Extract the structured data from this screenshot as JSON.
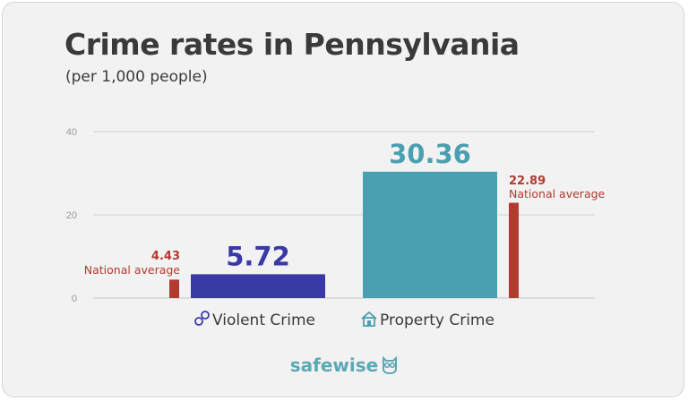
{
  "chart_data": {
    "type": "bar",
    "title": "Crime rates in Pennsylvania",
    "subtitle": "(per 1,000 people)",
    "ylim": [
      0,
      40
    ],
    "yticks": [
      0,
      20,
      40
    ],
    "grid": true,
    "categories": [
      "Violent Crime",
      "Property Crime"
    ],
    "category_icons": [
      "handcuffs-icon",
      "house-icon"
    ],
    "values": [
      5.72,
      30.36
    ],
    "value_labels": [
      "5.72",
      "30.36"
    ],
    "bar_colors": [
      "#3a3aa6",
      "#4a9fb0"
    ],
    "national_average": {
      "label": "National average",
      "values": [
        4.43,
        22.89
      ],
      "value_labels": [
        "4.43",
        "22.89"
      ],
      "color": "#b23a2e"
    }
  },
  "brand": {
    "logo_text": "safewise",
    "logo_color": "#5aa9b5"
  }
}
